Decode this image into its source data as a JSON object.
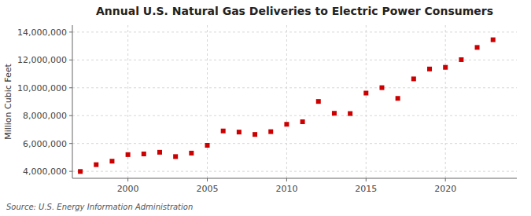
{
  "chart_data": {
    "type": "scatter",
    "title": "Annual U.S. Natural Gas Deliveries to Electric Power Consumers",
    "ylabel": "Million Cubic Feet",
    "annotations": [
      "Source: U.S. Energy Information Administration"
    ],
    "x": [
      1997,
      1998,
      1999,
      2000,
      2001,
      2002,
      2003,
      2004,
      2005,
      2006,
      2007,
      2008,
      2009,
      2010,
      2011,
      2012,
      2013,
      2014,
      2015,
      2016,
      2017,
      2018,
      2019,
      2020,
      2021,
      2022,
      2023
    ],
    "values": [
      3990000,
      4480000,
      4730000,
      5200000,
      5250000,
      5370000,
      5060000,
      5310000,
      5870000,
      6900000,
      6820000,
      6650000,
      6850000,
      7380000,
      7560000,
      9020000,
      8170000,
      8150000,
      9620000,
      10010000,
      9240000,
      10640000,
      11350000,
      11470000,
      12020000,
      12900000,
      13450000
    ],
    "color": "#cc0000",
    "marker": "square",
    "xlim": [
      1996.5,
      2024.5
    ],
    "xticks": [
      2000,
      2005,
      2010,
      2015,
      2020
    ],
    "ylim": [
      3500000,
      14500000
    ],
    "yticks": [
      {
        "value": 4000000,
        "label": "4,000,000"
      },
      {
        "value": 6000000,
        "label": "6,000,000"
      },
      {
        "value": 8000000,
        "label": "8,000,000"
      },
      {
        "value": 10000000,
        "label": "10,000,000"
      },
      {
        "value": 12000000,
        "label": "12,000,000"
      },
      {
        "value": 14000000,
        "label": "14,000,000"
      }
    ],
    "grid": true
  }
}
